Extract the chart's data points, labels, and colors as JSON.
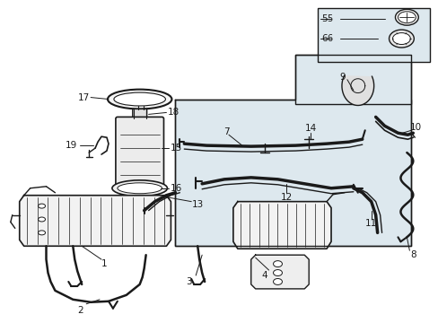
{
  "bg_color": "#ffffff",
  "line_color": "#1a1a1a",
  "box_fill": "#dde8ee",
  "fig_width": 4.89,
  "fig_height": 3.6,
  "dpi": 100
}
